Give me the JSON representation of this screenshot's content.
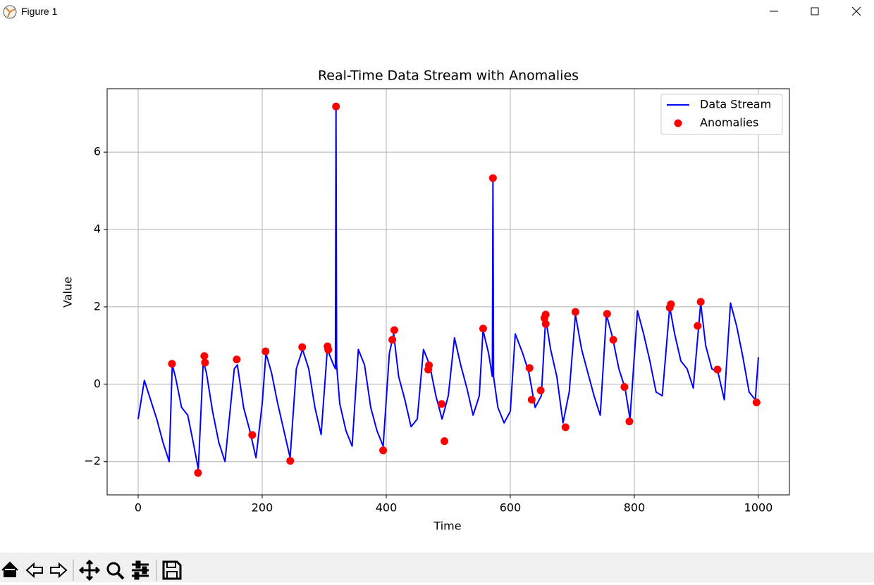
{
  "window": {
    "title": "Figure 1"
  },
  "chart_data": {
    "type": "line",
    "title": "Real-Time Data Stream with Anomalies",
    "xlabel": "Time",
    "ylabel": "Value",
    "xlim": [
      -50,
      1050
    ],
    "ylim": [
      -2.86,
      7.64
    ],
    "xticks": [
      0,
      200,
      400,
      600,
      800,
      1000
    ],
    "yticks": [
      {
        "value": -2,
        "label": "−2"
      },
      0,
      2,
      4,
      6
    ],
    "grid": true,
    "legend": "upper right",
    "series": [
      {
        "name": "Data Stream",
        "type": "line",
        "color": "#0000ff",
        "x": [
          0,
          10,
          20,
          30,
          40,
          50,
          55,
          60,
          70,
          80,
          90,
          97,
          105,
          110,
          120,
          130,
          140,
          155,
          160,
          170,
          180,
          190,
          200,
          206,
          215,
          225,
          235,
          245,
          255,
          265,
          275,
          285,
          295,
          305,
          315,
          318,
          319,
          320,
          325,
          335,
          345,
          355,
          365,
          375,
          385,
          395,
          405,
          412,
          420,
          430,
          440,
          450,
          460,
          470,
          480,
          490,
          500,
          510,
          520,
          530,
          540,
          550,
          556,
          565,
          571,
          572,
          573,
          580,
          590,
          600,
          608,
          620,
          630,
          640,
          650,
          657,
          665,
          675,
          685,
          695,
          705,
          715,
          725,
          735,
          745,
          755,
          765,
          775,
          785,
          793,
          805,
          815,
          825,
          835,
          845,
          857,
          865,
          875,
          885,
          895,
          907,
          915,
          925,
          935,
          945,
          955,
          965,
          975,
          985,
          995,
          1000
        ],
        "values": [
          -0.9,
          0.1,
          -0.4,
          -0.9,
          -1.5,
          -2.0,
          0.5,
          0.2,
          -0.6,
          -0.8,
          -1.6,
          -2.2,
          0.6,
          0.3,
          -0.7,
          -1.5,
          -2.0,
          0.4,
          0.5,
          -0.6,
          -1.2,
          -1.9,
          -0.5,
          0.8,
          0.3,
          -0.5,
          -1.2,
          -1.9,
          0.4,
          0.9,
          0.4,
          -0.6,
          -1.3,
          0.9,
          0.5,
          0.4,
          7.18,
          0.5,
          -0.5,
          -1.2,
          -1.6,
          0.9,
          0.5,
          -0.6,
          -1.2,
          -1.6,
          0.8,
          1.3,
          0.2,
          -0.4,
          -1.1,
          -0.9,
          0.9,
          0.5,
          -0.3,
          -0.9,
          -0.3,
          1.2,
          0.5,
          -0.1,
          -0.8,
          -0.3,
          1.4,
          0.8,
          0.2,
          5.33,
          0.2,
          -0.6,
          -1.0,
          -0.7,
          1.3,
          0.8,
          0.3,
          -0.6,
          -0.3,
          1.7,
          0.9,
          0.2,
          -1.0,
          -0.2,
          1.8,
          0.9,
          0.3,
          -0.3,
          -0.8,
          1.8,
          1.2,
          0.4,
          -0.1,
          -0.9,
          1.9,
          1.3,
          0.6,
          -0.2,
          -0.3,
          2.0,
          1.3,
          0.6,
          0.4,
          -0.1,
          2.1,
          1.0,
          0.4,
          0.3,
          -0.4,
          2.1,
          1.5,
          0.7,
          -0.2,
          -0.4,
          0.7
        ]
      },
      {
        "name": "Anomalies",
        "type": "scatter",
        "color": "#ff0000",
        "x": [
          54.5,
          96.5,
          106.7,
          107.8,
          158.9,
          183.9,
          205.4,
          245.2,
          264.5,
          305.3,
          306.5,
          319,
          395,
          409.8,
          413,
          468.8,
          467.7,
          489.2,
          493.8,
          556.2,
          572,
          631,
          634.5,
          649,
          655,
          657,
          657,
          689,
          705,
          756,
          766,
          784,
          792,
          857,
          859,
          902,
          907,
          934,
          997
        ],
        "values": [
          0.53,
          -2.29,
          0.73,
          0.56,
          0.64,
          -1.31,
          0.85,
          -1.98,
          0.96,
          0.98,
          0.89,
          7.18,
          -1.71,
          1.15,
          1.4,
          0.49,
          0.38,
          -0.51,
          -1.47,
          1.44,
          5.33,
          0.42,
          -0.4,
          -0.16,
          1.71,
          1.8,
          1.56,
          -1.11,
          1.87,
          1.82,
          1.15,
          -0.07,
          -0.96,
          1.98,
          2.07,
          1.51,
          2.13,
          0.38,
          -0.47
        ]
      }
    ]
  }
}
